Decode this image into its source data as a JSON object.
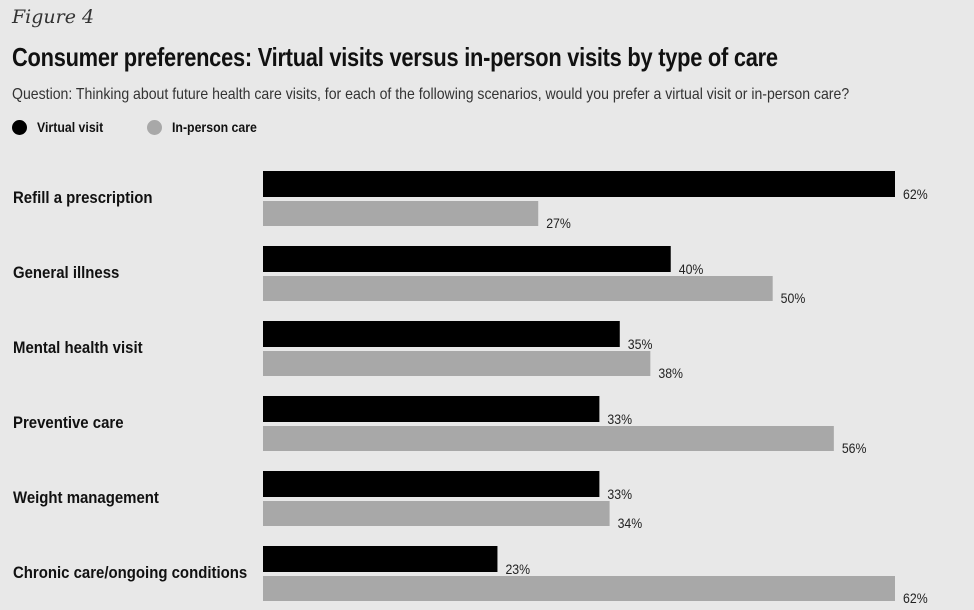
{
  "figure_label": "Figure 4",
  "chart_data": {
    "type": "bar",
    "orientation": "horizontal",
    "title": "Consumer preferences: Virtual visits versus in-person visits by type of care",
    "subtitle": "Question: Thinking about future health care visits, for each of the following scenarios, would you prefer a virtual visit or in-person care?",
    "categories": [
      "Refill a prescription",
      "General illness",
      "Mental health visit",
      "Preventive care",
      "Weight management",
      "Chronic care/ongoing conditions"
    ],
    "series": [
      {
        "name": "Virtual visit",
        "color": "#000000",
        "values": [
          62,
          40,
          35,
          33,
          33,
          23
        ]
      },
      {
        "name": "In-person care",
        "color": "#a8a8a8",
        "values": [
          27,
          50,
          38,
          56,
          34,
          62
        ]
      }
    ],
    "value_suffix": "%",
    "xlim": [
      0,
      62
    ],
    "legend_position": "top-left",
    "grid": false
  }
}
